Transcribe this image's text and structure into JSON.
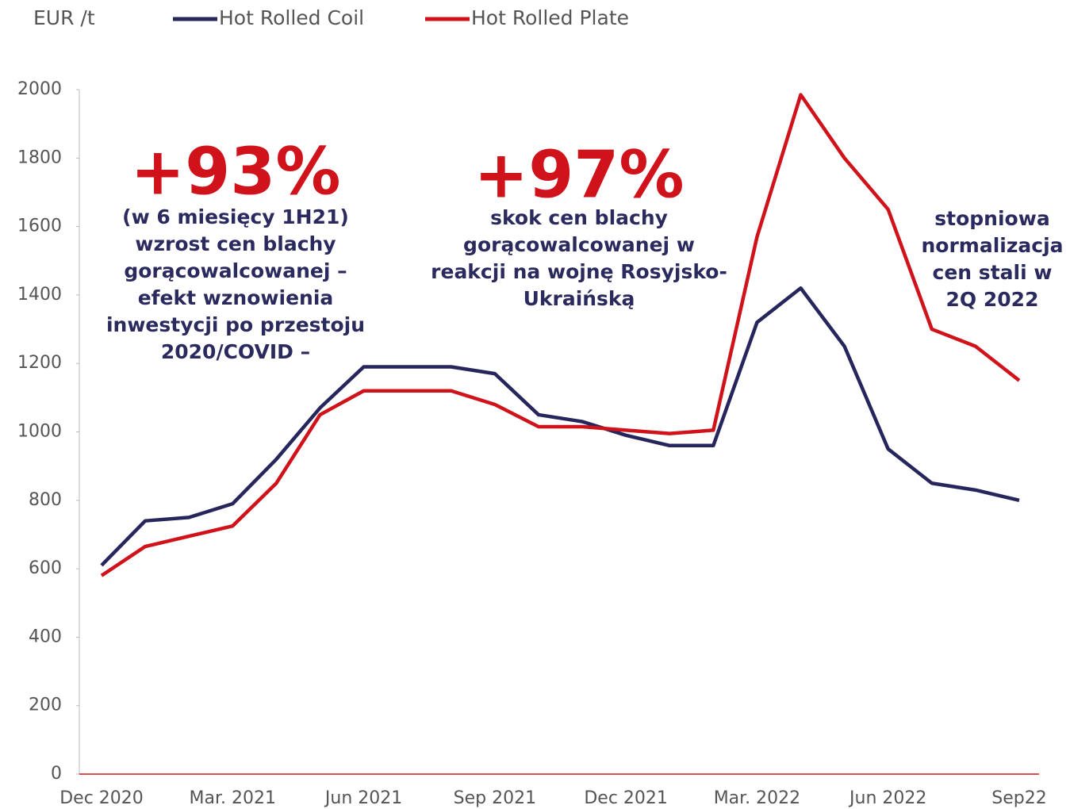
{
  "chart_data": {
    "type": "line",
    "ylabel": "EUR /t",
    "categories": [
      "Dec 2020",
      null,
      null,
      "Mar. 2021",
      null,
      null,
      "Jun 2021",
      null,
      null,
      "Sep 2021",
      null,
      null,
      "Dec 2021",
      null,
      null,
      "Mar. 2022",
      null,
      null,
      "Jun 2022",
      null,
      null,
      "Sep22"
    ],
    "series": [
      {
        "name": "Hot Rolled Coil",
        "color": "#27265c",
        "values": [
          610,
          740,
          750,
          790,
          920,
          1070,
          1190,
          1190,
          1190,
          1170,
          1050,
          1030,
          990,
          960,
          960,
          1320,
          1420,
          1250,
          950,
          850,
          830,
          800
        ]
      },
      {
        "name": "Hot Rolled Plate",
        "color": "#d0121b",
        "values": [
          580,
          665,
          695,
          725,
          850,
          1050,
          1120,
          1120,
          1120,
          1080,
          1015,
          1015,
          1005,
          995,
          1005,
          1570,
          1985,
          1800,
          1650,
          1300,
          1250,
          1150
        ]
      }
    ],
    "ylim": [
      0,
      2000
    ],
    "yticks": [
      0,
      200,
      400,
      600,
      800,
      1000,
      1200,
      1400,
      1600,
      1800,
      2000
    ],
    "grid": false,
    "legend": "top",
    "annotations": [
      {
        "headline": "+93%",
        "lines": [
          "(w 6 miesięcy 1H21)",
          "wzrost cen blachy",
          "gorącowalcowanej –",
          "efekt wznowienia",
          "inwestycji po  przestoju",
          "2020/COVID –"
        ]
      },
      {
        "headline": "+97%",
        "lines": [
          "skok cen blachy",
          "gorącowalcowanej w",
          "reakcji na wojnę Rosyjsko-",
          "Ukraińską"
        ]
      },
      {
        "lines": [
          "stopniowa",
          "normalizacja",
          "cen stali w",
          "2Q 2022"
        ]
      }
    ]
  }
}
